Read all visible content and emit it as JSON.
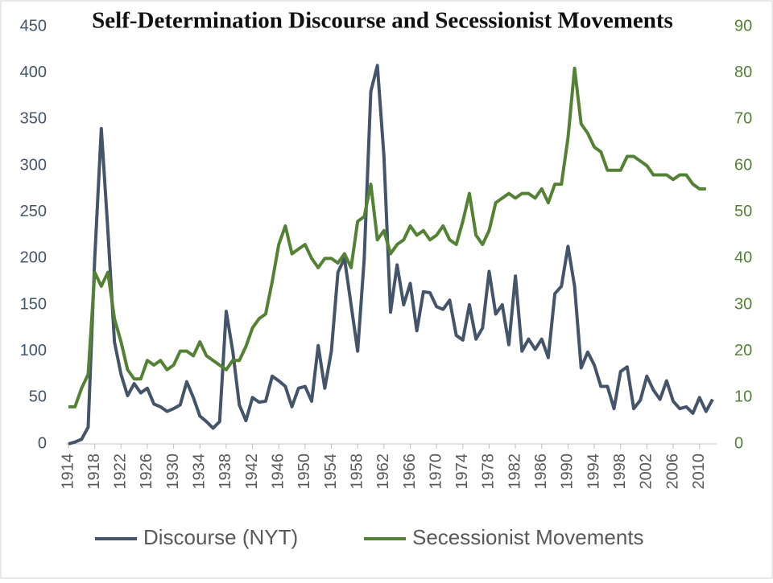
{
  "chart_data": {
    "type": "line",
    "title": "Self-Determination Discourse and Secessionist Movements",
    "x": [
      1914,
      1915,
      1916,
      1917,
      1918,
      1919,
      1920,
      1921,
      1922,
      1923,
      1924,
      1925,
      1926,
      1927,
      1928,
      1929,
      1930,
      1931,
      1932,
      1933,
      1934,
      1935,
      1936,
      1937,
      1938,
      1939,
      1940,
      1941,
      1942,
      1943,
      1944,
      1945,
      1946,
      1947,
      1948,
      1949,
      1950,
      1951,
      1952,
      1953,
      1954,
      1955,
      1956,
      1957,
      1958,
      1959,
      1960,
      1961,
      1962,
      1963,
      1964,
      1965,
      1966,
      1967,
      1968,
      1969,
      1970,
      1971,
      1972,
      1973,
      1974,
      1975,
      1976,
      1977,
      1978,
      1979,
      1980,
      1981,
      1982,
      1983,
      1984,
      1985,
      1986,
      1987,
      1988,
      1989,
      1990,
      1991,
      1992,
      1993,
      1994,
      1995,
      1996,
      1997,
      1998,
      1999,
      2000,
      2001,
      2002,
      2003,
      2004,
      2005,
      2006,
      2007,
      2008,
      2009,
      2010,
      2011,
      2012
    ],
    "series": [
      {
        "name": "Discourse (NYT)",
        "color": "#44546a",
        "axis": "y",
        "values": [
          0,
          2,
          5,
          18,
          200,
          340,
          230,
          110,
          75,
          52,
          65,
          55,
          60,
          43,
          40,
          35,
          38,
          42,
          67,
          50,
          30,
          24,
          17,
          24,
          143,
          100,
          42,
          25,
          50,
          45,
          46,
          73,
          68,
          62,
          40,
          60,
          62,
          46,
          106,
          60,
          100,
          185,
          200,
          150,
          100,
          200,
          380,
          408,
          310,
          142,
          193,
          150,
          173,
          122,
          164,
          163,
          148,
          145,
          155,
          117,
          112,
          150,
          113,
          125,
          186,
          140,
          150,
          107,
          181,
          100,
          113,
          102,
          113,
          93,
          162,
          170,
          213,
          170,
          82,
          99,
          85,
          62,
          62,
          38,
          78,
          83,
          38,
          47,
          73,
          58,
          48,
          68,
          46,
          38,
          40,
          33,
          50,
          35,
          48
        ]
      },
      {
        "name": "Secessionist Movements",
        "color": "#548235",
        "axis": "y2",
        "values": [
          8,
          8,
          12,
          15,
          37,
          34,
          37,
          27,
          22,
          16,
          14,
          14,
          18,
          17,
          18,
          16,
          17,
          20,
          20,
          19,
          22,
          19,
          18,
          17,
          16,
          18,
          18,
          21,
          25,
          27,
          28,
          35,
          43,
          47,
          41,
          42,
          43,
          40,
          38,
          40,
          40,
          39,
          41,
          38,
          48,
          49,
          56,
          44,
          46,
          41,
          43,
          44,
          47,
          45,
          46,
          44,
          45,
          47,
          44,
          43,
          48,
          54,
          45,
          43,
          46,
          52,
          53,
          54,
          53,
          54,
          54,
          53,
          55,
          52,
          56,
          56,
          66,
          81,
          69,
          67,
          64,
          63,
          59,
          59,
          59,
          62,
          62,
          61,
          60,
          58,
          58,
          58,
          57,
          58,
          58,
          56,
          55,
          55,
          null
        ]
      }
    ],
    "xlim": [
      1914,
      2012
    ],
    "xticks": [
      1914,
      1918,
      1922,
      1926,
      1930,
      1934,
      1938,
      1942,
      1946,
      1950,
      1954,
      1958,
      1962,
      1966,
      1970,
      1974,
      1978,
      1982,
      1986,
      1990,
      1994,
      1998,
      2002,
      2006,
      2010
    ],
    "ylim": [
      0,
      450
    ],
    "yticks": [
      0,
      50,
      100,
      150,
      200,
      250,
      300,
      350,
      400,
      450
    ],
    "y2lim": [
      0,
      90
    ],
    "y2ticks": [
      0,
      10,
      20,
      30,
      40,
      50,
      60,
      70,
      80,
      90
    ],
    "legend": "bottom"
  }
}
